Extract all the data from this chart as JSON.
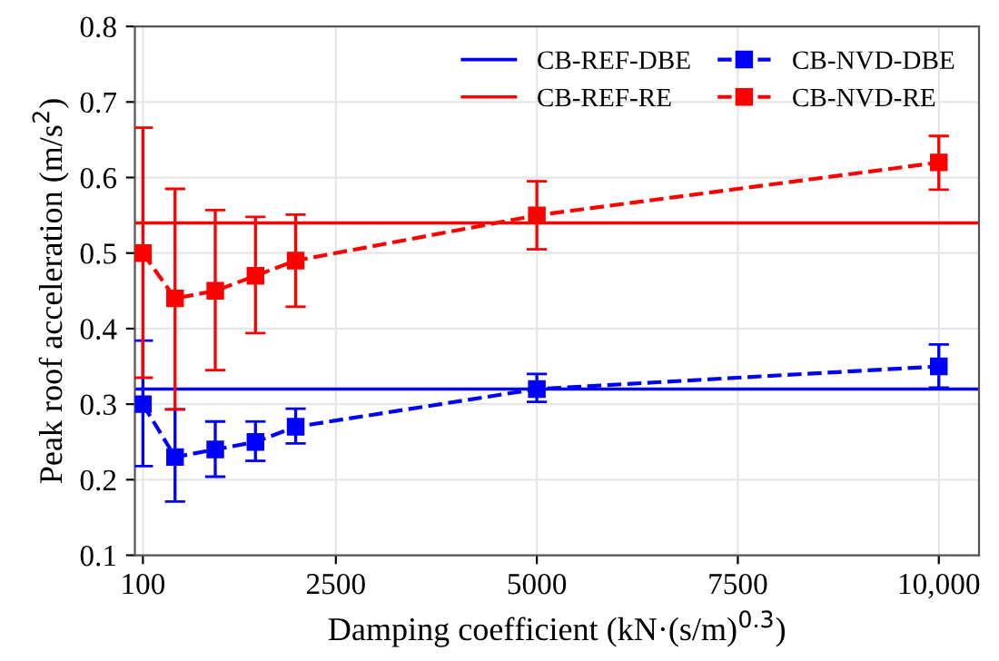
{
  "chart_data": {
    "type": "line",
    "xlabel": "Damping coefficient (kN·(s/m)$^{0.3}$)",
    "ylabel": "Peak roof acceleration (m/s$^{2}$)",
    "x": [
      100,
      500,
      1000,
      1500,
      2000,
      5000,
      10000
    ],
    "series": [
      {
        "name": "CB-NVD-DBE",
        "color": "#0000ff",
        "values": [
          0.3,
          0.23,
          0.24,
          0.25,
          0.27,
          0.32,
          0.35
        ],
        "errors": [
          [
            0.218,
            0.384
          ],
          [
            0.171,
            0.293
          ],
          [
            0.204,
            0.277
          ],
          [
            0.225,
            0.277
          ],
          [
            0.248,
            0.294
          ],
          [
            0.303,
            0.34
          ],
          [
            0.322,
            0.379
          ]
        ]
      },
      {
        "name": "CB-NVD-RE",
        "color": "#ff0000",
        "values": [
          0.5,
          0.44,
          0.45,
          0.47,
          0.49,
          0.55,
          0.62
        ],
        "errors": [
          [
            0.335,
            0.666
          ],
          [
            0.293,
            0.585
          ],
          [
            0.345,
            0.557
          ],
          [
            0.394,
            0.548
          ],
          [
            0.429,
            0.551
          ],
          [
            0.505,
            0.595
          ],
          [
            0.584,
            0.655
          ]
        ]
      }
    ],
    "ref_lines": [
      {
        "axis": "y",
        "value": 0.32,
        "label": "CB-REF-DBE",
        "color": "#0000ff"
      },
      {
        "axis": "y",
        "value": 0.54,
        "label": "CB-REF-RE",
        "color": "#ff0000"
      }
    ],
    "marker": "square",
    "line_style": "dashed",
    "grid": true,
    "legend": "top right",
    "xlim": [
      0,
      10500
    ],
    "xticks": [
      100,
      2500,
      5000,
      7500,
      {
        "value": 10000,
        "label": "10,000"
      }
    ],
    "ylim": [
      0.1,
      0.8
    ],
    "yticks": [
      0.1,
      0.2,
      0.3,
      0.4,
      0.5,
      0.6,
      0.7,
      0.8
    ]
  }
}
